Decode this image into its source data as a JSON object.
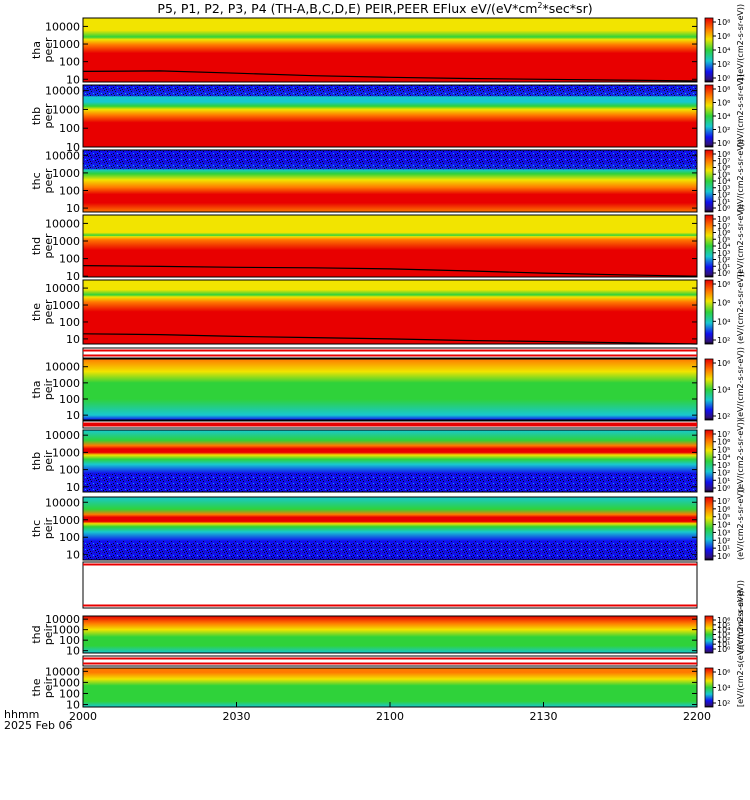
{
  "header": {
    "title_main": "P5, P1, P2, P3, P4 (TH-A,B,C,D,E) PEIR,PEER EFlux eV/(eV*cm",
    "title_sup": "2",
    "title_tail": "*sec*sr)"
  },
  "time_axis": {
    "label_line1": "hhmm",
    "label_line2": "2025 Feb 06",
    "ticks": [
      "2000",
      "2030",
      "2100",
      "2130",
      "2200"
    ]
  },
  "colors": {
    "red": "#e80000",
    "orange": "#ff7a00",
    "yellow": "#f2e400",
    "green": "#2fd23a",
    "cyan": "#18c8d0",
    "blue": "#1010f0",
    "purple": "#30107a",
    "black": "#000000"
  },
  "colorbar_label": "[eV/(cm2-s",
  "chart_data": [
    {
      "type": "heatmap",
      "panel": "tha-peer",
      "ylabel": [
        "tha",
        "peer"
      ],
      "x": [
        2000,
        2200
      ],
      "y_scale": "log",
      "ylim": [
        7,
        30000
      ],
      "y_ticks": [
        "10",
        "100",
        "1000",
        "10000"
      ],
      "colorbar_ticks": [
        "10⁸",
        "10⁶",
        "10⁴",
        "10²",
        "10⁰"
      ],
      "cbar_cycle": "1(eV/(cm2-s-sr-eV))",
      "profile": [
        [
          10,
          "red"
        ],
        [
          50,
          "red"
        ],
        [
          300,
          "red"
        ],
        [
          900,
          "orange"
        ],
        [
          1800,
          "yellow"
        ],
        [
          2500,
          "green"
        ],
        [
          6000,
          "yellow"
        ],
        [
          30000,
          "yellow"
        ]
      ],
      "trace_y": [
        28,
        30,
        22,
        16,
        13,
        11,
        10,
        9,
        8
      ]
    },
    {
      "type": "heatmap",
      "panel": "thb-peer",
      "ylabel": [
        "thb",
        "peer"
      ],
      "x": [
        2000,
        2200
      ],
      "y_scale": "log",
      "ylim": [
        10,
        20000
      ],
      "y_ticks": [
        "10",
        "100",
        "1000",
        "10000"
      ],
      "colorbar_ticks": [
        "10⁸",
        "10⁶",
        "10⁴",
        "10²",
        "10⁰"
      ],
      "cbar_cycle": "(eV/(cm2-s-sr-eV))",
      "profile": [
        [
          10,
          "red"
        ],
        [
          60,
          "red"
        ],
        [
          200,
          "red"
        ],
        [
          500,
          "orange"
        ],
        [
          1000,
          "yellow"
        ],
        [
          1500,
          "green"
        ],
        [
          2500,
          "cyan"
        ],
        [
          5000,
          "cyan"
        ],
        [
          20000,
          "blue"
        ]
      ]
    },
    {
      "type": "heatmap",
      "panel": "thc-peer",
      "ylabel": [
        "thc",
        "peer"
      ],
      "x": [
        2000,
        2200
      ],
      "y_scale": "log",
      "ylim": [
        6,
        20000
      ],
      "y_ticks": [
        "10",
        "100",
        "1000",
        "10000"
      ],
      "colorbar_ticks": [
        "10⁸",
        "10⁷",
        "10⁶",
        "10⁵",
        "10⁴",
        "10³",
        "10²",
        "10¹",
        "10⁰"
      ],
      "cbar_cycle": "(eV/(cm2-s-sr-eV))",
      "profile": [
        [
          6,
          "orange"
        ],
        [
          20,
          "red"
        ],
        [
          60,
          "red"
        ],
        [
          150,
          "orange"
        ],
        [
          400,
          "yellow"
        ],
        [
          900,
          "green"
        ],
        [
          1600,
          "cyan"
        ],
        [
          4000,
          "blue"
        ],
        [
          20000,
          "blue"
        ]
      ]
    },
    {
      "type": "heatmap",
      "panel": "thd-peer",
      "ylabel": [
        "thd",
        "peer"
      ],
      "x": [
        2000,
        2200
      ],
      "y_scale": "log",
      "ylim": [
        9,
        30000
      ],
      "y_ticks": [
        "10",
        "100",
        "1000",
        "10000"
      ],
      "colorbar_ticks": [
        "10⁸",
        "10⁷",
        "10⁶",
        "10⁵",
        "10⁴",
        "10³",
        "10²",
        "10¹",
        "10⁰"
      ],
      "cbar_cycle": "(eV/(cm2-s-sr-eV))",
      "profile": [
        [
          9,
          "red"
        ],
        [
          40,
          "red"
        ],
        [
          300,
          "red"
        ],
        [
          1200,
          "orange"
        ],
        [
          1800,
          "yellow"
        ],
        [
          2100,
          "green"
        ],
        [
          3000,
          "yellow"
        ],
        [
          30000,
          "yellow"
        ]
      ],
      "trace_y": [
        40,
        36,
        32,
        30,
        26,
        20,
        15,
        12,
        10
      ]
    },
    {
      "type": "heatmap",
      "panel": "the-peer",
      "ylabel": [
        "the",
        "peer"
      ],
      "x": [
        2000,
        2200
      ],
      "y_scale": "log",
      "ylim": [
        5,
        30000
      ],
      "y_ticks": [
        "10",
        "100",
        "1000",
        "10000"
      ],
      "colorbar_ticks": [
        "10⁸",
        "10⁶",
        "10⁴",
        "10²"
      ],
      "cbar_cycle": "(eV/(cm2-s-sr-eV))",
      "profile": [
        [
          5,
          "red"
        ],
        [
          30,
          "red"
        ],
        [
          400,
          "red"
        ],
        [
          1500,
          "orange"
        ],
        [
          3000,
          "yellow"
        ],
        [
          4000,
          "green"
        ],
        [
          8000,
          "yellow"
        ],
        [
          30000,
          "yellow"
        ]
      ],
      "trace_y": [
        20,
        18,
        14,
        12,
        10,
        8,
        7,
        6,
        5
      ]
    },
    {
      "type": "heatmap",
      "panel": "tha-peir",
      "ylabel": [
        "tha",
        "peir"
      ],
      "x": [
        2000,
        2200
      ],
      "y_scale": "log",
      "ylim": [
        5,
        30000
      ],
      "y_ticks": [
        "10",
        "100",
        "1000",
        "10000"
      ],
      "colorbar_ticks": [
        "10⁶",
        "10⁴",
        "10²"
      ],
      "cbar_cycle": "(eV/(cm2-s-sr-eV))",
      "profile": [
        [
          5,
          "blue"
        ],
        [
          10,
          "cyan"
        ],
        [
          100,
          "green"
        ],
        [
          1000,
          "green"
        ],
        [
          5000,
          "yellow"
        ],
        [
          30000,
          "orange"
        ]
      ]
    },
    {
      "type": "heatmap",
      "panel": "thb-peir",
      "ylabel": [
        "thb",
        "peir"
      ],
      "x": [
        2000,
        2200
      ],
      "y_scale": "log",
      "ylim": [
        5,
        20000
      ],
      "y_ticks": [
        "10",
        "100",
        "1000",
        "10000"
      ],
      "colorbar_ticks": [
        "10⁷",
        "10⁶",
        "10⁵",
        "10⁴",
        "10³",
        "10²",
        "10¹",
        "10⁰"
      ],
      "cbar_cycle": "(eV/(cm2-s-sr-eV))",
      "profile": [
        [
          5,
          "blue"
        ],
        [
          60,
          "blue"
        ],
        [
          200,
          "cyan"
        ],
        [
          400,
          "green"
        ],
        [
          700,
          "yellow"
        ],
        [
          1000,
          "red"
        ],
        [
          1600,
          "red"
        ],
        [
          2500,
          "orange"
        ],
        [
          5000,
          "green"
        ],
        [
          20000,
          "cyan"
        ]
      ]
    },
    {
      "type": "heatmap",
      "panel": "thc-peir",
      "ylabel": [
        "thc",
        "peir"
      ],
      "x": [
        2000,
        2200
      ],
      "y_scale": "log",
      "ylim": [
        5,
        20000
      ],
      "y_ticks": [
        "10",
        "100",
        "1000",
        "10000"
      ],
      "colorbar_ticks": [
        "10⁷",
        "10⁶",
        "10⁵",
        "10⁴",
        "10³",
        "10²",
        "10¹",
        "10⁰"
      ],
      "cbar_cycle": "(eV/(cm2-s-sr-eV))",
      "profile": [
        [
          5,
          "blue"
        ],
        [
          60,
          "blue"
        ],
        [
          200,
          "cyan"
        ],
        [
          400,
          "green"
        ],
        [
          600,
          "yellow"
        ],
        [
          800,
          "red"
        ],
        [
          1400,
          "red"
        ],
        [
          2000,
          "orange"
        ],
        [
          4000,
          "green"
        ],
        [
          20000,
          "cyan"
        ]
      ]
    },
    {
      "type": "heatmap",
      "panel": "thd-peir",
      "ylabel": [
        "thd",
        "peir"
      ],
      "x": [
        2000,
        2200
      ],
      "y_scale": "log",
      "ylim": [
        6,
        20000
      ],
      "y_ticks": [
        "10",
        "100",
        "1000",
        "10000"
      ],
      "colorbar_ticks": [
        "10⁶",
        "10⁵",
        "10⁴",
        "10³",
        "10²",
        "10¹",
        "10⁰"
      ],
      "cbar_cycle": "(eV/(cm2-s-sr-eV))",
      "profile": [
        [
          6,
          "cyan"
        ],
        [
          30,
          "green"
        ],
        [
          200,
          "green"
        ],
        [
          1000,
          "yellow"
        ],
        [
          4000,
          "orange"
        ],
        [
          20000,
          "red"
        ]
      ]
    },
    {
      "type": "heatmap",
      "panel": "the-peir",
      "ylabel": [
        "the",
        "peir"
      ],
      "x": [
        2000,
        2200
      ],
      "y_scale": "log",
      "ylim": [
        6,
        20000
      ],
      "y_ticks": [
        "10",
        "100",
        "1000",
        "10000"
      ],
      "colorbar_ticks": [
        "10⁶",
        "10⁴",
        "10²"
      ],
      "cbar_cycle": "(eV/(cm2-s-sr-eV))",
      "profile": [
        [
          6,
          "cyan"
        ],
        [
          20,
          "green"
        ],
        [
          500,
          "green"
        ],
        [
          2000,
          "yellow"
        ],
        [
          8000,
          "orange"
        ],
        [
          20000,
          "orange"
        ]
      ]
    }
  ]
}
